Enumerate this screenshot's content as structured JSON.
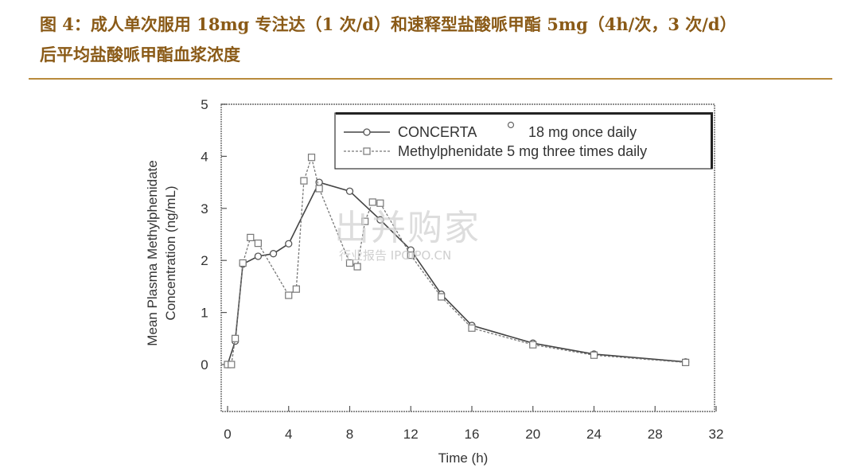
{
  "caption": {
    "line1": "图 4：成人单次服用 18mg 专注达（1 次/d）和速释型盐酸哌甲酯 5mg（4h/次，3 次/d）",
    "line2": "后平均盐酸哌甲酯血浆浓度"
  },
  "watermark": {
    "main": "出并购家",
    "sub": "行业报告 IPOIPO.CN"
  },
  "chart_data": {
    "type": "line",
    "xlabel": "Time (h)",
    "ylabel_line1": "Mean Plasma Methylphenidate",
    "ylabel_line2": "Concentration (ng/mL)",
    "xlim": [
      0,
      32
    ],
    "ylim": [
      0,
      5
    ],
    "xticks": [
      0,
      4,
      8,
      12,
      16,
      20,
      24,
      28,
      32
    ],
    "yticks": [
      0,
      1,
      2,
      3,
      4,
      5
    ],
    "legend_position": "top-right",
    "series": [
      {
        "name": "CONCERTA",
        "legend_rest": "18 mg  once daily",
        "style": "solid",
        "marker": "circle",
        "x": [
          0,
          0.5,
          1,
          2,
          3,
          4,
          6,
          8,
          10,
          12,
          14,
          16,
          20,
          24,
          30
        ],
        "y": [
          0,
          0.45,
          1.93,
          2.08,
          2.13,
          2.32,
          3.5,
          3.33,
          2.78,
          2.2,
          1.35,
          0.75,
          0.41,
          0.2,
          0.05
        ]
      },
      {
        "name": "Methylphenidate 5 mg  three times daily",
        "style": "dashed",
        "marker": "square",
        "x": [
          0,
          0.25,
          0.5,
          1,
          1.5,
          2,
          4,
          4.5,
          5,
          5.5,
          6,
          8,
          8.5,
          9,
          9.5,
          10,
          12,
          14,
          16,
          20,
          24,
          30
        ],
        "y": [
          0,
          0,
          0.5,
          1.95,
          2.44,
          2.33,
          1.33,
          1.45,
          3.53,
          3.98,
          3.38,
          1.95,
          1.88,
          2.75,
          3.12,
          3.1,
          2.1,
          1.3,
          0.7,
          0.38,
          0.18,
          0.04
        ]
      }
    ]
  }
}
